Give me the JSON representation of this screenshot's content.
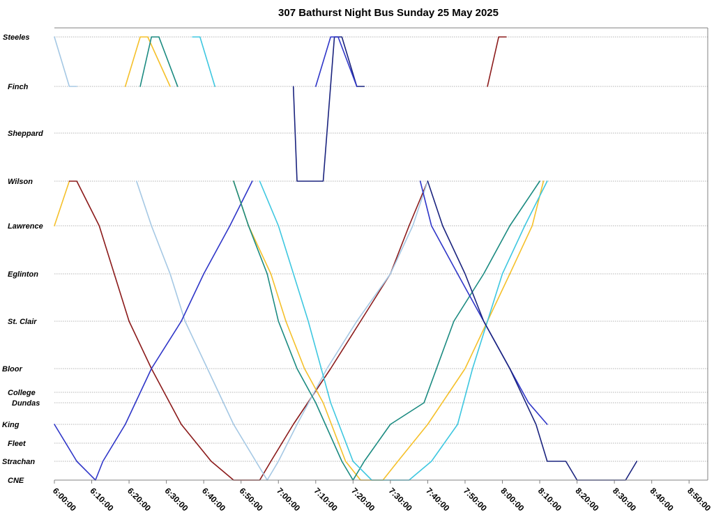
{
  "chart_data": {
    "type": "line",
    "title": "307 Bathurst Night Bus Sunday 25 May 2025",
    "xlabel": "",
    "ylabel": "",
    "x_axis": {
      "min": "6:00:00",
      "max": "8:55:00",
      "tick_labels": [
        "6:00:00",
        "6:10:00",
        "6:20:00",
        "6:30:00",
        "6:40:00",
        "6:50:00",
        "7:00:00",
        "7:10:00",
        "7:20:00",
        "7:30:00",
        "7:40:00",
        "7:50:00",
        "8:00:00",
        "8:10:00",
        "8:20:00",
        "8:30:00",
        "8:40:00",
        "8:50:00"
      ]
    },
    "y_axis": {
      "note": "stops ordered from CNE (bottom) to Steeles (top)",
      "stops": [
        "Steeles",
        "Finch",
        "Sheppard",
        "Wilson",
        "Lawrence",
        "Eglinton",
        "St. Clair",
        "Bloor",
        "College",
        "Dundas",
        "King",
        "Fleet",
        "Strachan",
        "CNE"
      ]
    },
    "grid": true,
    "legend": "none",
    "series": [
      {
        "color": "#a5c8e4",
        "points": [
          [
            "6:00:00",
            "Steeles"
          ],
          [
            "6:04:00",
            "Finch"
          ],
          [
            "6:06:00",
            "Finch"
          ]
        ]
      },
      {
        "color": "#f5c02a",
        "points": [
          [
            "6:19:00",
            "Finch"
          ],
          [
            "6:23:00",
            "Steeles"
          ],
          [
            "6:25:00",
            "Steeles"
          ],
          [
            "6:31:00",
            "Finch"
          ]
        ]
      },
      {
        "color": "#1a8a80",
        "points": [
          [
            "6:23:00",
            "Finch"
          ],
          [
            "6:26:00",
            "Steeles"
          ],
          [
            "6:28:00",
            "Steeles"
          ],
          [
            "6:33:00",
            "Finch"
          ]
        ]
      },
      {
        "color": "#3ec7e0",
        "points": [
          [
            "6:37:00",
            "Steeles"
          ],
          [
            "6:39:00",
            "Steeles"
          ],
          [
            "6:43:00",
            "Finch"
          ]
        ]
      },
      {
        "color": "#1a237e",
        "points": [
          [
            "7:04:00",
            "Finch"
          ],
          [
            "7:05:00",
            "Wilson"
          ],
          [
            "7:12:00",
            "Wilson"
          ],
          [
            "7:15:00",
            "Steeles"
          ],
          [
            "7:17:00",
            "Steeles"
          ],
          [
            "7:21:00",
            "Finch"
          ],
          [
            "7:23:00",
            "Finch"
          ]
        ]
      },
      {
        "color": "#2f36c8",
        "points": [
          [
            "7:10:00",
            "Finch"
          ],
          [
            "7:14:00",
            "Steeles"
          ],
          [
            "7:16:00",
            "Steeles"
          ],
          [
            "7:21:00",
            "Finch"
          ]
        ]
      },
      {
        "color": "#8b1a1a",
        "points": [
          [
            "7:56:00",
            "Finch"
          ],
          [
            "7:59:00",
            "Steeles"
          ],
          [
            "8:01:00",
            "Steeles"
          ]
        ]
      },
      {
        "color": "#f5c02a",
        "points": [
          [
            "6:00:00",
            "Lawrence"
          ],
          [
            "6:04:00",
            "Wilson"
          ]
        ]
      },
      {
        "color": "#8b1a1a",
        "points": [
          [
            "6:04:00",
            "Wilson"
          ],
          [
            "6:06:00",
            "Wilson"
          ],
          [
            "6:12:00",
            "Lawrence"
          ],
          [
            "6:20:00",
            "St. Clair"
          ],
          [
            "6:26:00",
            "Bloor"
          ],
          [
            "6:34:00",
            "King"
          ],
          [
            "6:42:00",
            "Strachan"
          ],
          [
            "6:48:00",
            "CNE"
          ],
          [
            "6:55:00",
            "CNE"
          ],
          [
            "6:58:00",
            "Strachan"
          ],
          [
            "7:04:00",
            "King"
          ],
          [
            "7:14:00",
            "Bloor"
          ],
          [
            "7:22:00",
            "St. Clair"
          ],
          [
            "7:30:00",
            "Eglinton"
          ],
          [
            "7:35:00",
            "Lawrence"
          ],
          [
            "7:40:00",
            "Wilson"
          ]
        ]
      },
      {
        "color": "#a5c8e4",
        "points": [
          [
            "6:22:00",
            "Wilson"
          ],
          [
            "6:26:00",
            "Lawrence"
          ],
          [
            "6:31:00",
            "Eglinton"
          ],
          [
            "6:35:00",
            "St. Clair"
          ],
          [
            "6:41:00",
            "Bloor"
          ],
          [
            "6:48:00",
            "King"
          ],
          [
            "6:57:00",
            "CNE"
          ],
          [
            "7:00:00",
            "Strachan"
          ],
          [
            "7:05:00",
            "King"
          ],
          [
            "7:13:00",
            "Bloor"
          ],
          [
            "7:21:00",
            "St. Clair"
          ],
          [
            "7:30:00",
            "Eglinton"
          ],
          [
            "7:36:00",
            "Lawrence"
          ],
          [
            "7:40:00",
            "Wilson"
          ]
        ]
      },
      {
        "color": "#2f36c8",
        "points": [
          [
            "6:00:00",
            "King"
          ],
          [
            "6:06:00",
            "Strachan"
          ],
          [
            "6:11:00",
            "CNE"
          ],
          [
            "6:13:00",
            "Strachan"
          ],
          [
            "6:19:00",
            "King"
          ],
          [
            "6:26:00",
            "Bloor"
          ],
          [
            "6:34:00",
            "St. Clair"
          ],
          [
            "6:40:00",
            "Eglinton"
          ],
          [
            "6:47:00",
            "Lawrence"
          ],
          [
            "6:53:00",
            "Wilson"
          ]
        ]
      },
      {
        "color": "#f5c02a",
        "points": [
          [
            "6:48:00",
            "Wilson"
          ],
          [
            "6:52:00",
            "Lawrence"
          ],
          [
            "6:58:00",
            "Eglinton"
          ],
          [
            "7:02:00",
            "St. Clair"
          ],
          [
            "7:07:00",
            "Bloor"
          ],
          [
            "7:12:00",
            "Dundas"
          ],
          [
            "7:18:00",
            "Strachan"
          ],
          [
            "7:22:00",
            "CNE"
          ],
          [
            "7:28:00",
            "CNE"
          ],
          [
            "7:32:00",
            "Strachan"
          ],
          [
            "7:40:00",
            "King"
          ],
          [
            "7:50:00",
            "Bloor"
          ],
          [
            "7:56:00",
            "St. Clair"
          ],
          [
            "8:02:00",
            "Eglinton"
          ],
          [
            "8:08:00",
            "Lawrence"
          ],
          [
            "8:11:00",
            "Wilson"
          ]
        ]
      },
      {
        "color": "#1a8a80",
        "points": [
          [
            "6:48:00",
            "Wilson"
          ],
          [
            "6:52:00",
            "Lawrence"
          ],
          [
            "6:57:00",
            "Eglinton"
          ],
          [
            "7:00:00",
            "St. Clair"
          ],
          [
            "7:05:00",
            "Bloor"
          ],
          [
            "7:10:00",
            "Dundas"
          ],
          [
            "7:17:00",
            "Strachan"
          ],
          [
            "7:20:00",
            "CNE"
          ],
          [
            "7:23:00",
            "Strachan"
          ],
          [
            "7:30:00",
            "King"
          ],
          [
            "7:39:00",
            "Dundas"
          ],
          [
            "7:47:00",
            "St. Clair"
          ],
          [
            "7:55:00",
            "Eglinton"
          ],
          [
            "8:02:00",
            "Lawrence"
          ],
          [
            "8:10:00",
            "Wilson"
          ]
        ]
      },
      {
        "color": "#3ec7e0",
        "points": [
          [
            "6:55:00",
            "Wilson"
          ],
          [
            "7:00:00",
            "Lawrence"
          ],
          [
            "7:08:00",
            "St. Clair"
          ],
          [
            "7:14:00",
            "Dundas"
          ],
          [
            "7:20:00",
            "Strachan"
          ],
          [
            "7:25:00",
            "CNE"
          ],
          [
            "7:35:00",
            "CNE"
          ],
          [
            "7:41:00",
            "Strachan"
          ],
          [
            "7:48:00",
            "King"
          ],
          [
            "7:52:00",
            "Bloor"
          ],
          [
            "7:56:00",
            "St. Clair"
          ],
          [
            "8:00:00",
            "Eglinton"
          ],
          [
            "8:06:00",
            "Lawrence"
          ],
          [
            "8:12:00",
            "Wilson"
          ]
        ]
      },
      {
        "color": "#2f36c8",
        "points": [
          [
            "7:38:00",
            "Wilson"
          ],
          [
            "7:41:00",
            "Lawrence"
          ],
          [
            "7:48:00",
            "Eglinton"
          ],
          [
            "7:55:00",
            "St. Clair"
          ],
          [
            "8:02:00",
            "Bloor"
          ],
          [
            "8:07:00",
            "Dundas"
          ],
          [
            "8:12:00",
            "King"
          ]
        ]
      },
      {
        "color": "#1a237e",
        "points": [
          [
            "7:40:00",
            "Wilson"
          ],
          [
            "7:44:00",
            "Lawrence"
          ],
          [
            "7:50:00",
            "Eglinton"
          ],
          [
            "7:55:00",
            "St. Clair"
          ],
          [
            "8:02:00",
            "Bloor"
          ],
          [
            "8:09:00",
            "King"
          ],
          [
            "8:12:00",
            "Strachan"
          ],
          [
            "8:17:00",
            "Strachan"
          ],
          [
            "8:20:00",
            "CNE"
          ],
          [
            "8:33:00",
            "CNE"
          ],
          [
            "8:36:00",
            "Strachan"
          ]
        ]
      }
    ]
  }
}
